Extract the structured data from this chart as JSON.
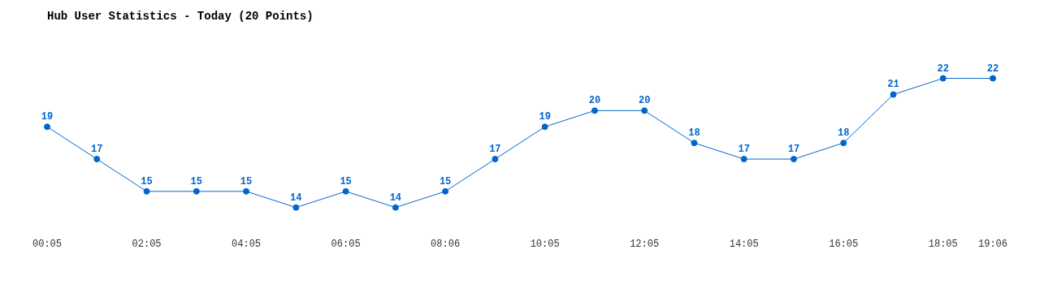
{
  "chart_data": {
    "type": "line",
    "title": "Hub User Statistics - Today (20 Points)",
    "categories": [
      "00:05",
      null,
      "02:05",
      null,
      "04:05",
      null,
      "06:05",
      null,
      "08:06",
      null,
      "10:05",
      null,
      "12:05",
      null,
      "14:05",
      null,
      "16:05",
      null,
      "18:05",
      "19:06"
    ],
    "series": [
      {
        "color": "#0066cc",
        "values": [
          19,
          17,
          15,
          15,
          15,
          14,
          15,
          14,
          15,
          17,
          19,
          20,
          20,
          18,
          17,
          17,
          18,
          21,
          22,
          22
        ]
      }
    ],
    "data_labels": true,
    "grid": false,
    "legend": false,
    "marker": "circle",
    "line_style": "solid"
  }
}
